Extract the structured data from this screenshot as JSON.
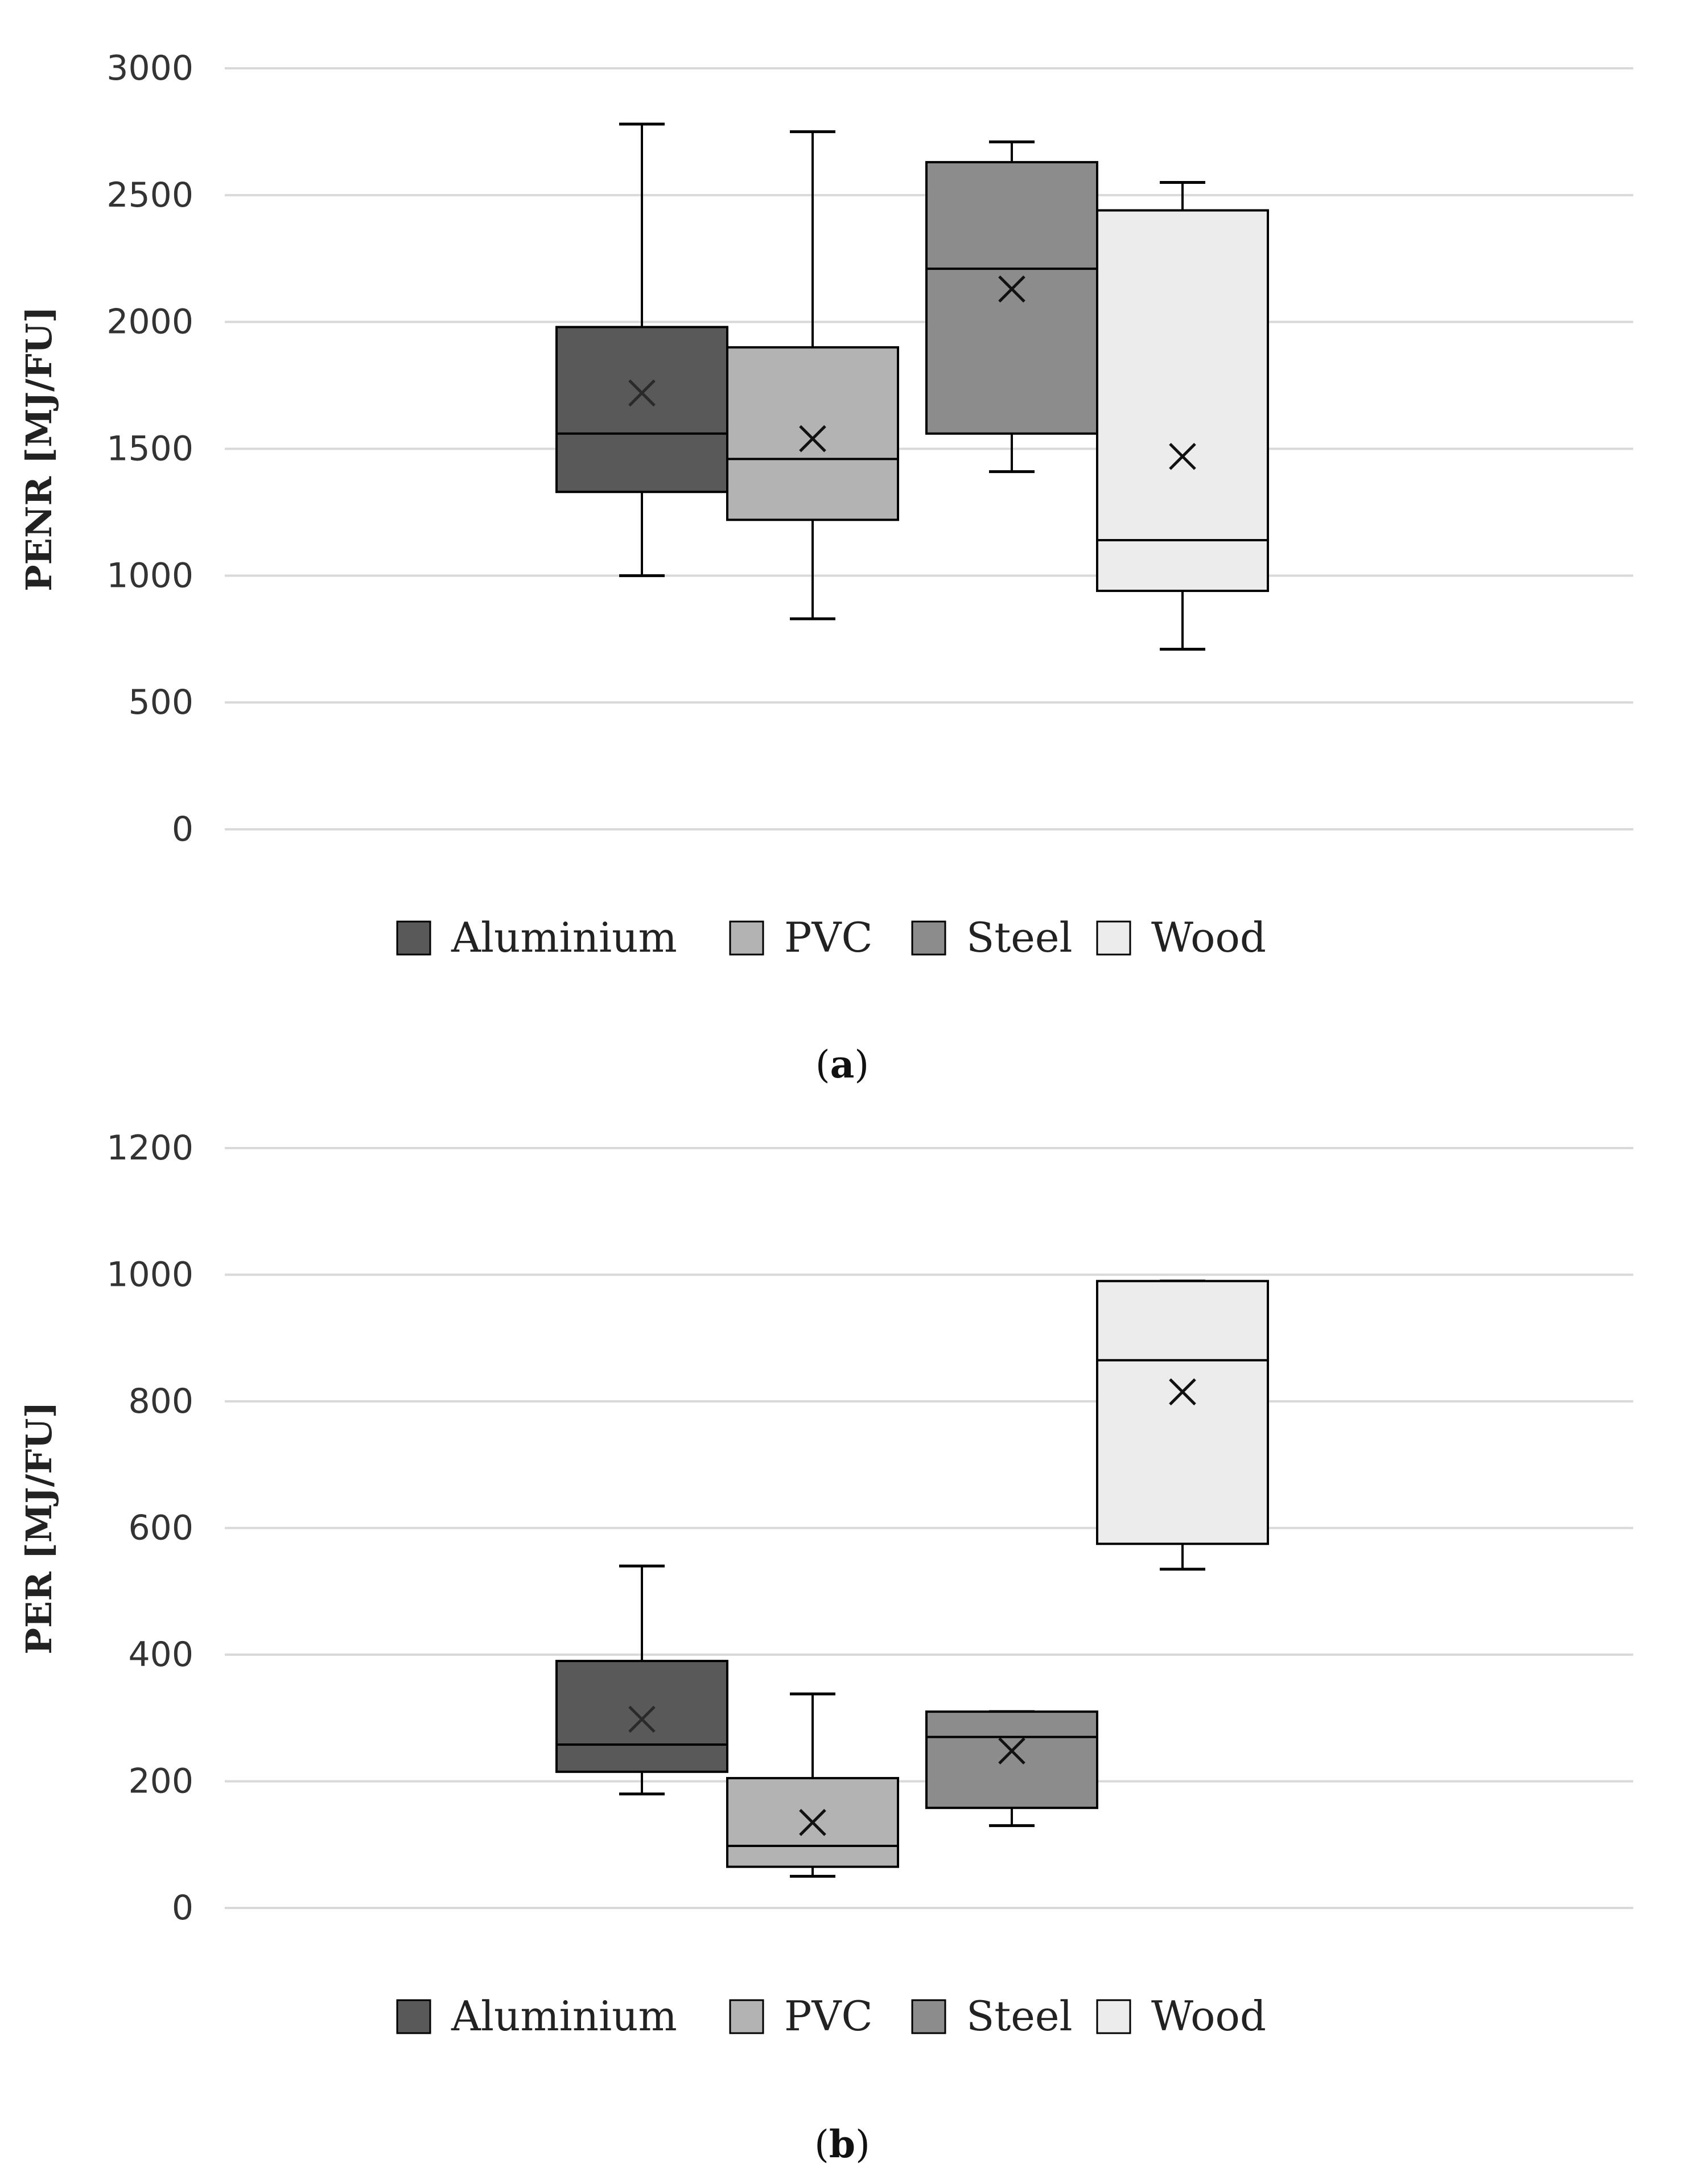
{
  "chart_data": [
    {
      "type": "boxplot",
      "panel_label": "a",
      "ylabel": "PENR [MJ/FU]",
      "xlabel": "",
      "ylim": [
        0,
        3000
      ],
      "yticks": [
        0,
        500,
        1000,
        1500,
        2000,
        2500,
        3000
      ],
      "grid": true,
      "legend": "bottom",
      "series": [
        {
          "name": "Aluminium",
          "color": "#595959",
          "min": 1000,
          "q1": 1330,
          "median": 1560,
          "q3": 1980,
          "max": 2780,
          "mean": 1720
        },
        {
          "name": "PVC",
          "color": "#b3b3b3",
          "min": 830,
          "q1": 1220,
          "median": 1460,
          "q3": 1900,
          "max": 2750,
          "mean": 1540
        },
        {
          "name": "Steel",
          "color": "#8c8c8c",
          "min": 1410,
          "q1": 1560,
          "median": 2210,
          "q3": 2630,
          "max": 2710,
          "mean": 2130
        },
        {
          "name": "Wood",
          "color": "#ececec",
          "min": 710,
          "q1": 940,
          "median": 1140,
          "q3": 2440,
          "max": 2550,
          "mean": 1470
        }
      ]
    },
    {
      "type": "boxplot",
      "panel_label": "b",
      "ylabel": "PER [MJ/FU]",
      "xlabel": "",
      "ylim": [
        0,
        1200
      ],
      "yticks": [
        0,
        200,
        400,
        600,
        800,
        1000,
        1200
      ],
      "grid": true,
      "legend": "bottom",
      "series": [
        {
          "name": "Aluminium",
          "color": "#595959",
          "min": 180,
          "q1": 215,
          "median": 258,
          "q3": 390,
          "max": 540,
          "mean": 298
        },
        {
          "name": "PVC",
          "color": "#b3b3b3",
          "min": 50,
          "q1": 65,
          "median": 98,
          "q3": 205,
          "max": 338,
          "mean": 135
        },
        {
          "name": "Steel",
          "color": "#8c8c8c",
          "min": 130,
          "q1": 158,
          "median": 270,
          "q3": 310,
          "max": 310,
          "mean": 248
        },
        {
          "name": "Wood",
          "color": "#ececec",
          "min": 535,
          "q1": 575,
          "median": 865,
          "q3": 990,
          "max": 990,
          "mean": 815
        }
      ]
    }
  ]
}
